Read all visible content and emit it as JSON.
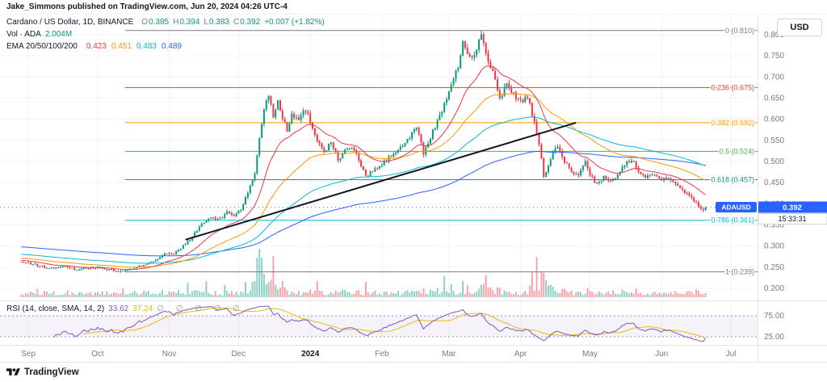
{
  "header": {
    "publish_line": "Jake_Simmons published on TradingView.com, Jun 20, 2024 04:26 UTC-4"
  },
  "toolbar": {
    "currency_button": "USD"
  },
  "legend": {
    "title": "Cardano / US Dollar, 1D, BINANCE",
    "ohlc": [
      {
        "label": "O",
        "value": "0.385"
      },
      {
        "label": "H",
        "value": "0.394"
      },
      {
        "label": "L",
        "value": "0.383"
      },
      {
        "label": "C",
        "value": "0.392"
      }
    ],
    "change": "+0.007 (+1.82%)",
    "up_color": "#089981",
    "vol_label": "Vol · ADA",
    "vol_value": "2.004M",
    "ema_label": "EMA 20/50/100/200",
    "ema_values": [
      "0.423",
      "0.451",
      "0.483",
      "0.489"
    ]
  },
  "rsi_legend": {
    "title": "RSI (14, close, SMA, 14, 2)",
    "value": "33.62",
    "ma_value": "37.24",
    "hidden_values": "∅ ∅ ∅ ∅ ∅"
  },
  "price_badge": {
    "symbol": "ADAUSD",
    "price": "0.392",
    "countdown": "15:33:31",
    "color": "#2962ff"
  },
  "price_scale": {
    "ticks": [
      "0.800",
      "0.750",
      "0.700",
      "0.650",
      "0.600",
      "0.550",
      "0.500",
      "0.450",
      "0.400",
      "0.350",
      "0.300",
      "0.250",
      "0.200"
    ]
  },
  "rsi_scale": {
    "ticks": [
      {
        "value": 75,
        "text": "75.00"
      },
      {
        "value": 25,
        "text": "25.00"
      }
    ]
  },
  "time_scale": {
    "labels": [
      {
        "day": 3,
        "text": "Sep"
      },
      {
        "day": 33,
        "text": "Oct"
      },
      {
        "day": 64,
        "text": "Nov"
      },
      {
        "day": 94,
        "text": "Dec"
      },
      {
        "day": 125,
        "text": "2024",
        "year": true
      },
      {
        "day": 156,
        "text": "Feb"
      },
      {
        "day": 185,
        "text": "Mar"
      },
      {
        "day": 216,
        "text": "Apr"
      },
      {
        "day": 246,
        "text": "May"
      },
      {
        "day": 277,
        "text": "Jun"
      },
      {
        "day": 307,
        "text": "Jul"
      }
    ]
  },
  "footer": {
    "brand": "TradingView"
  },
  "chart_data": {
    "type": "candlestick",
    "title": "Cardano / US Dollar, 1D, BINANCE",
    "symbol": "ADAUSD",
    "exchange": "BINANCE",
    "interval": "1D",
    "days": 297,
    "peak_day": 199,
    "last": {
      "open": 0.385,
      "high": 0.394,
      "low": 0.383,
      "close": 0.392,
      "change_abs": 0.007,
      "change_pct": 1.82,
      "volume": "2.004M",
      "countdown": "15:33:31"
    },
    "price_axis_range": [
      0.175,
      0.84
    ],
    "colors": {
      "up": "#089981",
      "down": "#f23645",
      "vol_up": "rgba(8,153,129,0.45)",
      "vol_down": "rgba(242,54,69,0.45)"
    },
    "fib_levels": [
      {
        "ratio": "0",
        "price": 0.81,
        "label": "0 (0.810)",
        "color": "#787b86"
      },
      {
        "ratio": "0.236",
        "price": 0.675,
        "label": "0.236 (0.675)",
        "color": "#f23645"
      },
      {
        "ratio": "0.382",
        "price": 0.592,
        "label": "0.382 (0.592)",
        "color": "#ff9800"
      },
      {
        "ratio": "0.5",
        "price": 0.524,
        "label": "0.5 (0.524)",
        "color": "#4caf50"
      },
      {
        "ratio": "0.618",
        "price": 0.457,
        "label": "0.618 (0.457)",
        "color": "#089981"
      },
      {
        "ratio": "0.786",
        "price": 0.361,
        "label": "0.786 (0.361)",
        "color": "#00bcd4"
      },
      {
        "ratio": "1",
        "price": 0.239,
        "label": "1 (0.239)",
        "color": "#787b86"
      }
    ],
    "emas": [
      {
        "period": 20,
        "color": "#f23645",
        "last": 0.423
      },
      {
        "period": 50,
        "color": "#ff9800",
        "last": 0.451
      },
      {
        "period": 100,
        "color": "#00bcd4",
        "last": 0.483
      },
      {
        "period": 200,
        "color": "#2962ff",
        "last": 0.489
      }
    ],
    "rsi": {
      "period": 14,
      "smoothing": "SMA",
      "ma_period": 14,
      "last": 33.62,
      "ma_last": 37.24,
      "upper_band": 75,
      "lower_band": 25,
      "color": "#7e57c2",
      "ma_color": "#f0b90b",
      "band_fill": "rgba(126,87,194,0.08)",
      "band_line": "#9b8ace"
    },
    "trendline": {
      "t1": 71,
      "p1": 0.315,
      "t2": 240,
      "p2": 0.592,
      "color": "#131722"
    },
    "price_keyframes": [
      [
        0,
        0.262
      ],
      [
        6,
        0.256
      ],
      [
        12,
        0.247
      ],
      [
        18,
        0.252
      ],
      [
        24,
        0.244
      ],
      [
        30,
        0.25
      ],
      [
        36,
        0.247
      ],
      [
        42,
        0.24
      ],
      [
        48,
        0.245
      ],
      [
        54,
        0.258
      ],
      [
        58,
        0.267
      ],
      [
        62,
        0.282
      ],
      [
        66,
        0.28
      ],
      [
        70,
        0.3
      ],
      [
        74,
        0.322
      ],
      [
        78,
        0.352
      ],
      [
        82,
        0.368
      ],
      [
        86,
        0.362
      ],
      [
        89,
        0.382
      ],
      [
        92,
        0.372
      ],
      [
        95,
        0.388
      ],
      [
        98,
        0.425
      ],
      [
        101,
        0.472
      ],
      [
        103,
        0.558
      ],
      [
        105,
        0.624
      ],
      [
        107,
        0.66
      ],
      [
        109,
        0.608
      ],
      [
        111,
        0.644
      ],
      [
        113,
        0.604
      ],
      [
        115,
        0.576
      ],
      [
        117,
        0.614
      ],
      [
        120,
        0.598
      ],
      [
        123,
        0.624
      ],
      [
        125,
        0.596
      ],
      [
        128,
        0.552
      ],
      [
        131,
        0.524
      ],
      [
        134,
        0.546
      ],
      [
        137,
        0.506
      ],
      [
        140,
        0.524
      ],
      [
        143,
        0.536
      ],
      [
        146,
        0.504
      ],
      [
        149,
        0.464
      ],
      [
        152,
        0.478
      ],
      [
        156,
        0.492
      ],
      [
        160,
        0.514
      ],
      [
        164,
        0.532
      ],
      [
        168,
        0.556
      ],
      [
        171,
        0.584
      ],
      [
        174,
        0.52
      ],
      [
        177,
        0.556
      ],
      [
        180,
        0.598
      ],
      [
        183,
        0.634
      ],
      [
        186,
        0.678
      ],
      [
        189,
        0.724
      ],
      [
        191,
        0.786
      ],
      [
        193,
        0.756
      ],
      [
        195,
        0.742
      ],
      [
        197,
        0.772
      ],
      [
        199,
        0.8
      ],
      [
        201,
        0.752
      ],
      [
        204,
        0.712
      ],
      [
        207,
        0.644
      ],
      [
        210,
        0.688
      ],
      [
        213,
        0.658
      ],
      [
        216,
        0.644
      ],
      [
        219,
        0.652
      ],
      [
        221,
        0.612
      ],
      [
        224,
        0.54
      ],
      [
        226,
        0.464
      ],
      [
        229,
        0.508
      ],
      [
        232,
        0.534
      ],
      [
        235,
        0.5
      ],
      [
        238,
        0.478
      ],
      [
        241,
        0.464
      ],
      [
        244,
        0.504
      ],
      [
        246,
        0.47
      ],
      [
        249,
        0.446
      ],
      [
        252,
        0.462
      ],
      [
        255,
        0.45
      ],
      [
        258,
        0.47
      ],
      [
        261,
        0.492
      ],
      [
        264,
        0.506
      ],
      [
        267,
        0.48
      ],
      [
        270,
        0.464
      ],
      [
        273,
        0.47
      ],
      [
        277,
        0.458
      ],
      [
        280,
        0.464
      ],
      [
        283,
        0.45
      ],
      [
        286,
        0.43
      ],
      [
        289,
        0.42
      ],
      [
        292,
        0.404
      ],
      [
        294,
        0.39
      ],
      [
        296,
        0.392
      ]
    ],
    "volume_spikes": [
      [
        44,
        1.4
      ],
      [
        58,
        1.5
      ],
      [
        72,
        1.8
      ],
      [
        80,
        2.2
      ],
      [
        88,
        1.6
      ],
      [
        97,
        2.5
      ],
      [
        100,
        3.5
      ],
      [
        103,
        6
      ],
      [
        104,
        9
      ],
      [
        105,
        7
      ],
      [
        107,
        5
      ],
      [
        109,
        4
      ],
      [
        111,
        3
      ],
      [
        113,
        2.5
      ],
      [
        128,
        2
      ],
      [
        149,
        1.8
      ],
      [
        160,
        1.6
      ],
      [
        171,
        2
      ],
      [
        183,
        2.2
      ],
      [
        186,
        2.4
      ],
      [
        191,
        3
      ],
      [
        193,
        2.6
      ],
      [
        199,
        3.2
      ],
      [
        201,
        3.4
      ],
      [
        204,
        2.4
      ],
      [
        207,
        2.6
      ],
      [
        221,
        2.8
      ],
      [
        223,
        4
      ],
      [
        226,
        4.5
      ],
      [
        229,
        2.5
      ],
      [
        246,
        1.8
      ],
      [
        261,
        1.6
      ],
      [
        286,
        1.6
      ],
      [
        292,
        1.8
      ],
      [
        296,
        1.4
      ]
    ]
  }
}
